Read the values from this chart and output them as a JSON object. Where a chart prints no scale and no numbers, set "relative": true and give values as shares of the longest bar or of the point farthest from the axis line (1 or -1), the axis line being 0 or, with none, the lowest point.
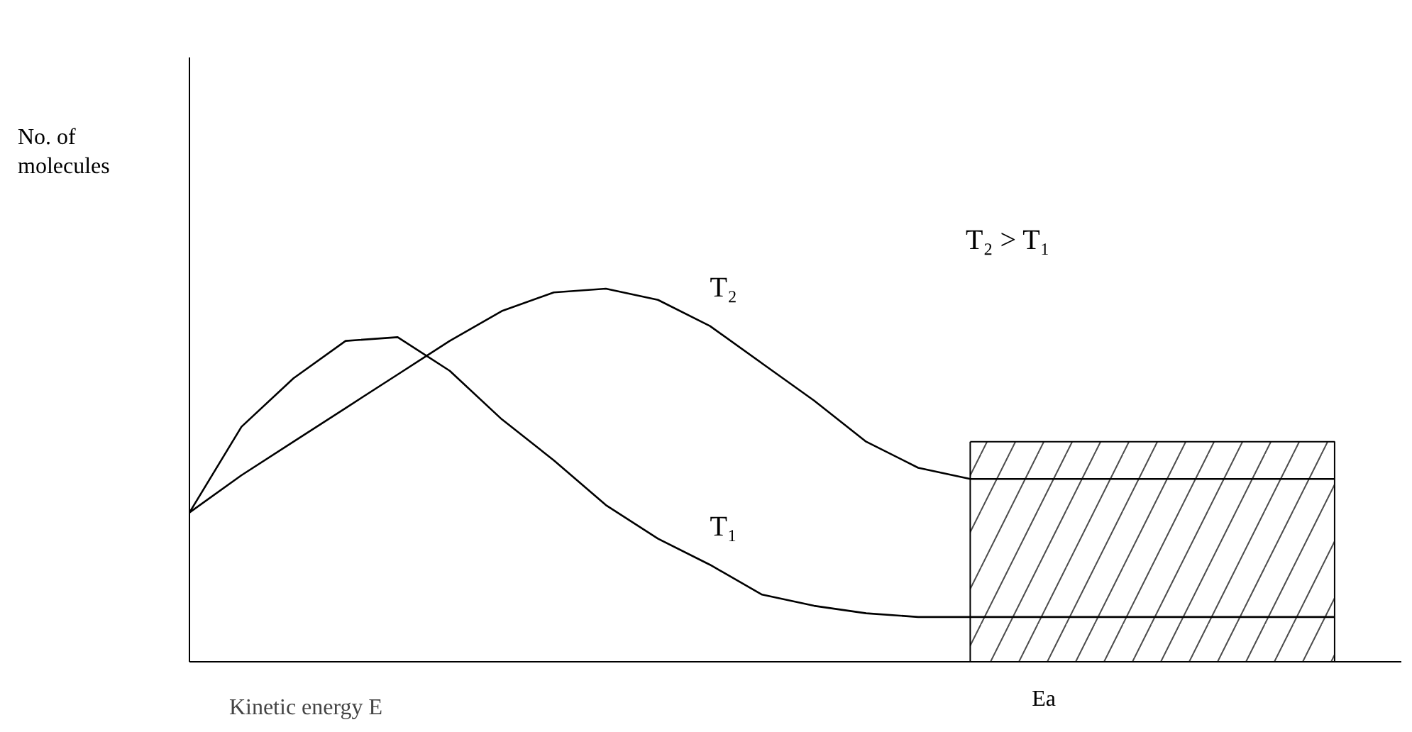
{
  "chart_data": {
    "type": "line",
    "relative": true,
    "xlabel": "Kinetic energy E",
    "annotations": [
      "No. of molecules",
      "T₂ > T₁",
      "Ea"
    ],
    "categories": [
      null,
      null,
      null,
      null,
      null,
      null,
      null,
      null,
      null,
      null,
      null,
      null,
      null,
      null,
      null,
      null,
      null,
      null,
      null,
      null,
      null,
      null,
      null
    ],
    "series": [
      {
        "type": "area",
        "color": "#000000",
        "values": [
          null,
          null,
          null,
          null,
          null,
          null,
          null,
          null,
          null,
          null,
          null,
          null,
          null,
          null,
          null,
          0.59,
          0.59,
          0.59,
          0.59,
          0.59,
          0.59,
          0.59,
          0.59
        ]
      },
      {
        "name": "T₁",
        "color": "#000000",
        "values": [
          0.4,
          0.63,
          0.76,
          0.86,
          0.87,
          0.78,
          0.65,
          0.54,
          0.42,
          0.33,
          0.26,
          0.18,
          0.15,
          0.13,
          0.12,
          0.12,
          0.12,
          0.12,
          0.12,
          0.12,
          0.12,
          0.12,
          0.12
        ]
      },
      {
        "name": "T₂",
        "color": "#000000",
        "values": [
          0.4,
          0.5,
          0.59,
          0.68,
          0.77,
          0.86,
          0.94,
          0.99,
          1.0,
          0.97,
          0.9,
          0.8,
          0.7,
          0.59,
          0.52,
          0.49,
          0.49,
          0.49,
          0.49,
          0.49,
          0.49,
          0.49,
          0.49
        ]
      }
    ],
    "marker": "none",
    "line_style": "solid",
    "tick_labels": false
  }
}
